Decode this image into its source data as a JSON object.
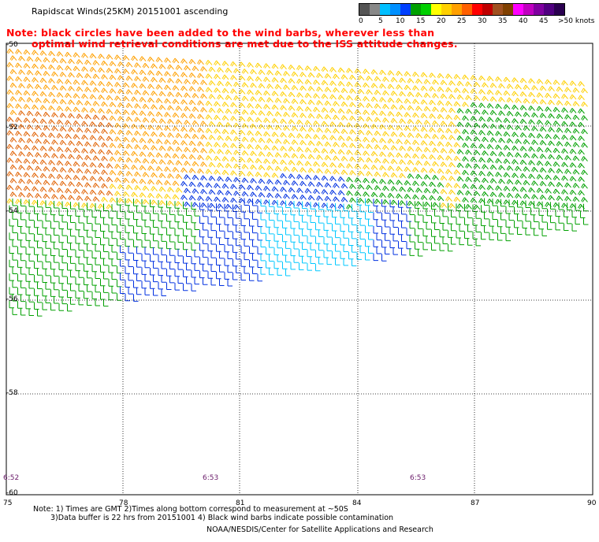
{
  "title": "Rapidscat Winds(25KM) 20151001 ascending",
  "note_red": {
    "line1": "Note: black circles have been added to the wind barbs, wherever less than",
    "line2": "optimal wind retrieval conditions are met due to the ISS attitude changes."
  },
  "legend": {
    "colors": [
      "#555555",
      "#888888",
      "#00bfff",
      "#0090ff",
      "#0040ff",
      "#00a000",
      "#00d000",
      "#ffff00",
      "#ffd000",
      "#ffa000",
      "#ff6000",
      "#ff0000",
      "#c00000",
      "#a05020",
      "#804000",
      "#ff00ff",
      "#c000c0",
      "#8000a0",
      "#500080",
      "#2a0050"
    ],
    "labels": [
      "0",
      "5",
      "10",
      "15",
      "20",
      "25",
      "30",
      "35",
      "40",
      "45",
      ">50 knots"
    ]
  },
  "axes": {
    "lat_labels": [
      "-50",
      "-52",
      "-54",
      "-56",
      "-58",
      "-60"
    ],
    "lon_labels": [
      "75",
      "78",
      "81",
      "84",
      "87",
      "90"
    ]
  },
  "times": [
    "6:52",
    "6:53",
    "6:53"
  ],
  "footer": {
    "line1": "Note: 1) Times are GMT 2)Times along bottom correspond to measurement at ~50S",
    "line2": "3)Data buffer is 22 hrs from 20151001 4) Black wind barbs indicate possible contamination",
    "line3": "NOAA/NESDIS/Center for Satellite Applications and Research"
  }
}
